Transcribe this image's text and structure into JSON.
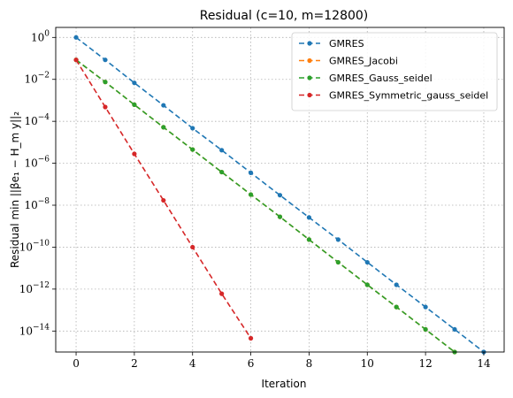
{
  "chart_data": {
    "type": "line",
    "title": "Residual (c=10, m=12800)",
    "xlabel": "Iteration",
    "ylabel": "Residual min ||βe₁ − H_m y||₂",
    "yscale": "log",
    "xlim": [
      -0.7,
      14.7
    ],
    "ylim": [
      1e-15,
      3
    ],
    "xticks": [
      0,
      2,
      4,
      6,
      8,
      10,
      12,
      14
    ],
    "yticks": [
      {
        "value": 1,
        "base": "10",
        "exp": "0"
      },
      {
        "value": 0.01,
        "base": "10",
        "exp": "−2"
      },
      {
        "value": 0.0001,
        "base": "10",
        "exp": "−4"
      },
      {
        "value": 1e-06,
        "base": "10",
        "exp": "−6"
      },
      {
        "value": 1e-08,
        "base": "10",
        "exp": "−8"
      },
      {
        "value": 1e-10,
        "base": "10",
        "exp": "−10"
      },
      {
        "value": 1e-12,
        "base": "10",
        "exp": "−12"
      },
      {
        "value": 1e-14,
        "base": "10",
        "exp": "−14"
      }
    ],
    "grid": true,
    "legend_position": "top-right",
    "series": [
      {
        "name": "GMRES",
        "color": "#1f77b4",
        "x": [
          0,
          1,
          2,
          3,
          4,
          5,
          6,
          7,
          8,
          9,
          10,
          11,
          12,
          13,
          14
        ],
        "y": [
          1.0,
          0.085,
          0.0068,
          0.00058,
          4.7e-05,
          4.2e-06,
          3.5e-07,
          3e-08,
          2.6e-09,
          2.3e-10,
          1.9e-11,
          1.6e-12,
          1.4e-13,
          1.2e-14,
          1e-15
        ]
      },
      {
        "name": "GMRES_Jacobi",
        "color": "#ff7f0e",
        "x": [
          0,
          1,
          2,
          3,
          4,
          5,
          6,
          7,
          8,
          9,
          10,
          11,
          12,
          13
        ],
        "y": [
          0.085,
          0.0075,
          0.00062,
          5.2e-05,
          4.5e-06,
          3.8e-07,
          3.2e-08,
          2.8e-09,
          2.3e-10,
          1.9e-11,
          1.6e-12,
          1.4e-13,
          1.2e-14,
          1e-15
        ]
      },
      {
        "name": "GMRES_Gauss_seidel",
        "color": "#2ca02c",
        "x": [
          0,
          1,
          2,
          3,
          4,
          5,
          6,
          7,
          8,
          9,
          10,
          11,
          12,
          13
        ],
        "y": [
          0.085,
          0.0075,
          0.00062,
          5.2e-05,
          4.5e-06,
          3.8e-07,
          3.2e-08,
          2.8e-09,
          2.3e-10,
          1.9e-11,
          1.6e-12,
          1.4e-13,
          1.2e-14,
          1e-15
        ]
      },
      {
        "name": "GMRES_Symmetric_gauss_seidel",
        "color": "#d62728",
        "x": [
          0,
          1,
          2,
          3,
          4,
          5,
          6
        ],
        "y": [
          0.085,
          0.00048,
          2.8e-06,
          1.7e-08,
          1e-10,
          6e-13,
          4.5e-15
        ]
      }
    ]
  }
}
